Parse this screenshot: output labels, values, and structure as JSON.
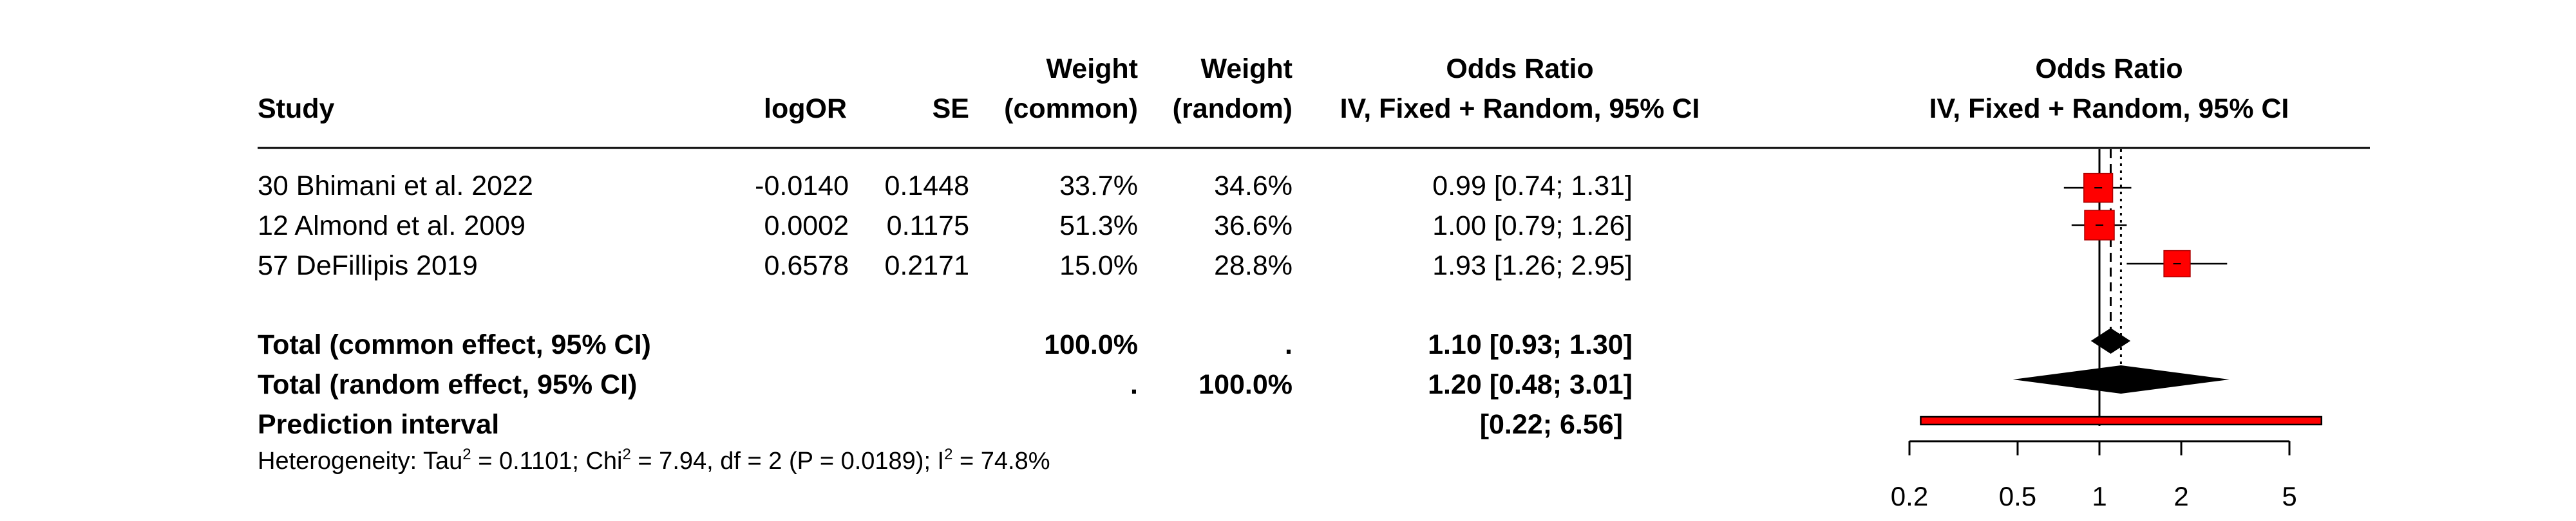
{
  "header": {
    "study": "Study",
    "logor": "logOR",
    "se": "SE",
    "weight_common_1": "Weight",
    "weight_common_2": "(common)",
    "weight_random_1": "Weight",
    "weight_random_2": "(random)",
    "or_1": "Odds Ratio",
    "or_2": "IV, Fixed + Random, 95% CI",
    "plot_1": "Odds Ratio",
    "plot_2": "IV, Fixed + Random, 95% CI"
  },
  "studies": [
    {
      "name": "30 Bhimani et al. 2022",
      "logOR": "-0.0140",
      "se": "0.1448",
      "w_common": "33.7%",
      "w_random": "34.6%",
      "ci_text": "0.99 [0.74; 1.31]"
    },
    {
      "name": "12 Almond et al. 2009",
      "logOR": "0.0002",
      "se": "0.1175",
      "w_common": "51.3%",
      "w_random": "36.6%",
      "ci_text": "1.00 [0.79; 1.26]"
    },
    {
      "name": "57 DeFillipis 2019",
      "logOR": "0.6578",
      "se": "0.2171",
      "w_common": "15.0%",
      "w_random": "28.8%",
      "ci_text": "1.93 [1.26; 2.95]"
    }
  ],
  "totals": {
    "common": {
      "label": "Total (common effect, 95% CI)",
      "w_common": "100.0%",
      "w_random": ".",
      "ci_text": "1.10 [0.93; 1.30]"
    },
    "random": {
      "label": "Total (random effect, 95% CI)",
      "w_common": ".",
      "w_random": "100.0%",
      "ci_text": "1.20 [0.48; 3.01]"
    },
    "prediction": {
      "label": "Prediction interval",
      "ci_text": "[0.22; 6.56]"
    }
  },
  "heterogeneity": {
    "prefix": "Heterogeneity: Tau",
    "sup1": "2",
    "mid1": " = 0.1101; Chi",
    "sup2": "2",
    "mid2": " = 7.94, df = 2 (P = 0.0189); I",
    "sup3": "2",
    "suffix": " = 74.8%"
  },
  "colors": {
    "square": "#ff0000",
    "prediction_fill": "#ff0000",
    "diamond": "#000000"
  },
  "chart_data": {
    "type": "forest",
    "x_scale": "log",
    "xlim": [
      0.2,
      5.5
    ],
    "tick_labels": [
      "0.2",
      "0.5",
      "1",
      "2",
      "5"
    ],
    "tick_values": [
      0.2,
      0.5,
      1,
      2,
      5
    ],
    "null_value": 1,
    "studies": [
      {
        "or": 0.99,
        "lower": 0.74,
        "upper": 1.31,
        "weight_random": 34.6
      },
      {
        "or": 1.0,
        "lower": 0.79,
        "upper": 1.26,
        "weight_random": 36.6
      },
      {
        "or": 1.93,
        "lower": 1.26,
        "upper": 2.95,
        "weight_random": 28.8
      }
    ],
    "common": {
      "or": 1.1,
      "lower": 0.93,
      "upper": 1.3
    },
    "random": {
      "or": 1.2,
      "lower": 0.48,
      "upper": 3.01
    },
    "prediction": {
      "lower": 0.22,
      "upper": 6.56
    }
  }
}
